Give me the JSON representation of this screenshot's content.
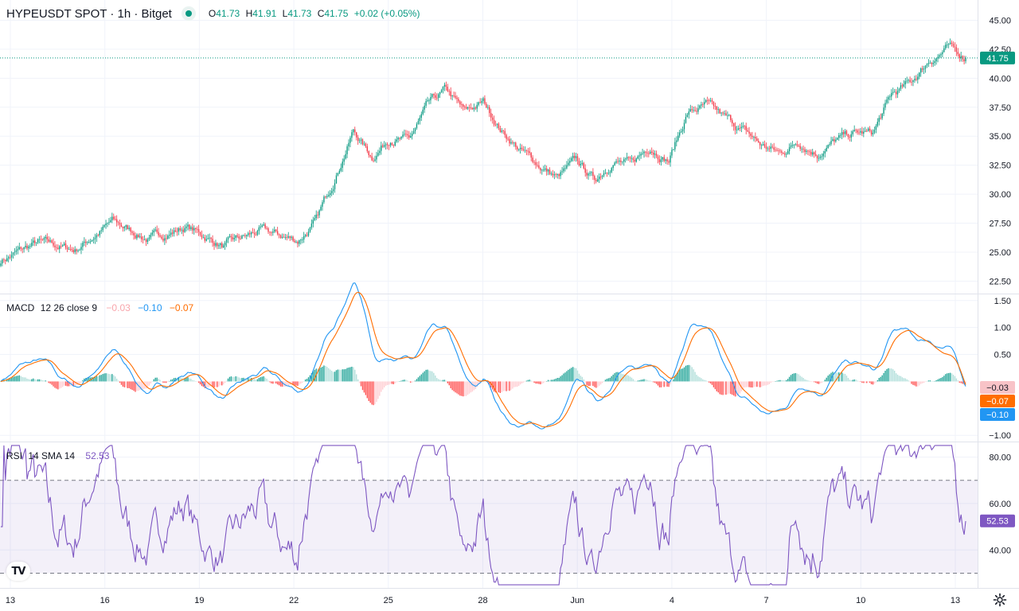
{
  "header": {
    "symbol_line": "HYPEUSDT SPOT · 1h · Bitget",
    "ohlc": {
      "o_label": "O",
      "o": "41.73",
      "h_label": "H",
      "h": "41.91",
      "l_label": "L",
      "l": "41.73",
      "c_label": "C",
      "c": "41.75",
      "change": "+0.02 (+0.05%)"
    }
  },
  "colors": {
    "up": "#089981",
    "down": "#f23645",
    "macd_line": "#2962ff",
    "macd_signal": "#ff6d00",
    "rsi_line": "#7e57c2",
    "rsi_band": "#7e57c2",
    "grid": "#f0f3fa",
    "text": "#131722"
  },
  "macd_legend": {
    "name": "MACD",
    "params": "12 26 close 9",
    "hist": "−0.03",
    "macd": "−0.10",
    "signal": "−0.07"
  },
  "rsi_legend": {
    "name": "RSI",
    "params": "14 SMA 14",
    "value": "52.53"
  },
  "icons": {
    "logo": "tradingview-logo-icon",
    "settings": "gear-icon"
  },
  "chart_data": [
    {
      "type": "candlestick",
      "title": "HYPEUSDT SPOT · 1h · Bitget",
      "x_labels": [
        "13",
        "16",
        "19",
        "22",
        "25",
        "28",
        "Jun",
        "4",
        "7",
        "10",
        "13"
      ],
      "y_ticks": [
        "45.00",
        "42.50",
        "40.00",
        "37.50",
        "35.00",
        "32.50",
        "30.00",
        "27.50",
        "25.00",
        "22.50"
      ],
      "ylim": [
        21.5,
        46.2
      ],
      "last_price": 41.75,
      "last_price_label": "41.75",
      "close_path": [
        [
          0,
          24.3
        ],
        [
          24,
          25.8
        ],
        [
          48,
          25.2
        ],
        [
          72,
          27.6
        ],
        [
          96,
          26.1
        ],
        [
          120,
          27.2
        ],
        [
          144,
          25.5
        ],
        [
          168,
          26.8
        ],
        [
          192,
          26.0
        ],
        [
          204,
          27.6
        ],
        [
          216,
          31.5
        ],
        [
          228,
          35.5
        ],
        [
          240,
          33.2
        ],
        [
          252,
          35.0
        ],
        [
          264,
          34.6
        ],
        [
          276,
          37.5
        ],
        [
          288,
          38.9
        ],
        [
          300,
          37.0
        ],
        [
          312,
          37.9
        ],
        [
          324,
          35.5
        ],
        [
          336,
          33.8
        ],
        [
          348,
          32.5
        ],
        [
          360,
          31.4
        ],
        [
          372,
          32.8
        ],
        [
          384,
          31.2
        ],
        [
          396,
          33.0
        ],
        [
          408,
          32.5
        ],
        [
          420,
          34.2
        ],
        [
          432,
          33.0
        ],
        [
          444,
          37.0
        ],
        [
          456,
          37.6
        ],
        [
          468,
          36.5
        ],
        [
          480,
          35.5
        ],
        [
          492,
          34.2
        ],
        [
          504,
          33.5
        ],
        [
          516,
          34.6
        ],
        [
          528,
          33.6
        ],
        [
          540,
          34.6
        ],
        [
          552,
          35.2
        ],
        [
          564,
          35.2
        ],
        [
          576,
          38.5
        ],
        [
          588,
          39.5
        ],
        [
          600,
          41.5
        ],
        [
          612,
          42.6
        ],
        [
          624,
          41.75
        ]
      ]
    },
    {
      "type": "line",
      "title": "MACD 12 26 close 9",
      "y_ticks": [
        "1.50",
        "1.00",
        "0.50",
        "−1.00"
      ],
      "ylim": [
        -1.1,
        1.6
      ],
      "markers": [
        {
          "value": -0.03,
          "label": "−0.03",
          "color": "#f8c3c7",
          "text_color": "#131722"
        },
        {
          "value": -0.07,
          "label": "−0.07",
          "color": "#ff6d00",
          "text_color": "#ffffff"
        },
        {
          "value": -0.1,
          "label": "−0.10",
          "color": "#2196f3",
          "text_color": "#ffffff"
        }
      ]
    },
    {
      "type": "line",
      "title": "RSI 14 SMA 14",
      "y_ticks": [
        "80.00",
        "60.00",
        "40.00"
      ],
      "ylim": [
        24,
        86
      ],
      "bands": [
        70,
        30
      ],
      "last_value": 52.53,
      "last_value_label": "52.53"
    }
  ]
}
